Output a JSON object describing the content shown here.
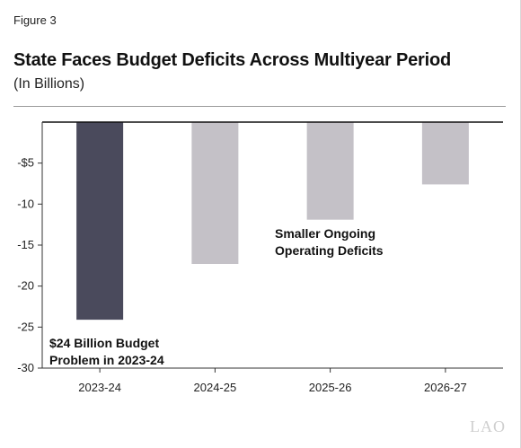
{
  "figure_label": "Figure 3",
  "watermark": "LAO",
  "chart_data": {
    "type": "bar",
    "title": "State Faces Budget Deficits Across Multiyear Period",
    "subtitle": "(In Billions)",
    "xlabel": "",
    "ylabel": "",
    "categories": [
      "2023-24",
      "2024-25",
      "2025-26",
      "2026-27"
    ],
    "values": [
      -24.1,
      -17.3,
      -11.9,
      -7.6
    ],
    "ylim": [
      -30,
      0
    ],
    "yticks": [
      -5,
      -10,
      -15,
      -20,
      -25,
      -30
    ],
    "ytick_labels": [
      "-$5",
      "-10",
      "-15",
      "-20",
      "-25",
      "-30"
    ],
    "grid": false,
    "bar_colors": [
      "#4a4a5c",
      "#c4c1c7",
      "#c4c1c7",
      "#c4c1c7"
    ],
    "annotations": [
      {
        "line1": "$24 Billion Budget",
        "line2": "Problem in 2023-24"
      },
      {
        "line1": "Smaller Ongoing",
        "line2": "Operating Deficits"
      }
    ]
  }
}
